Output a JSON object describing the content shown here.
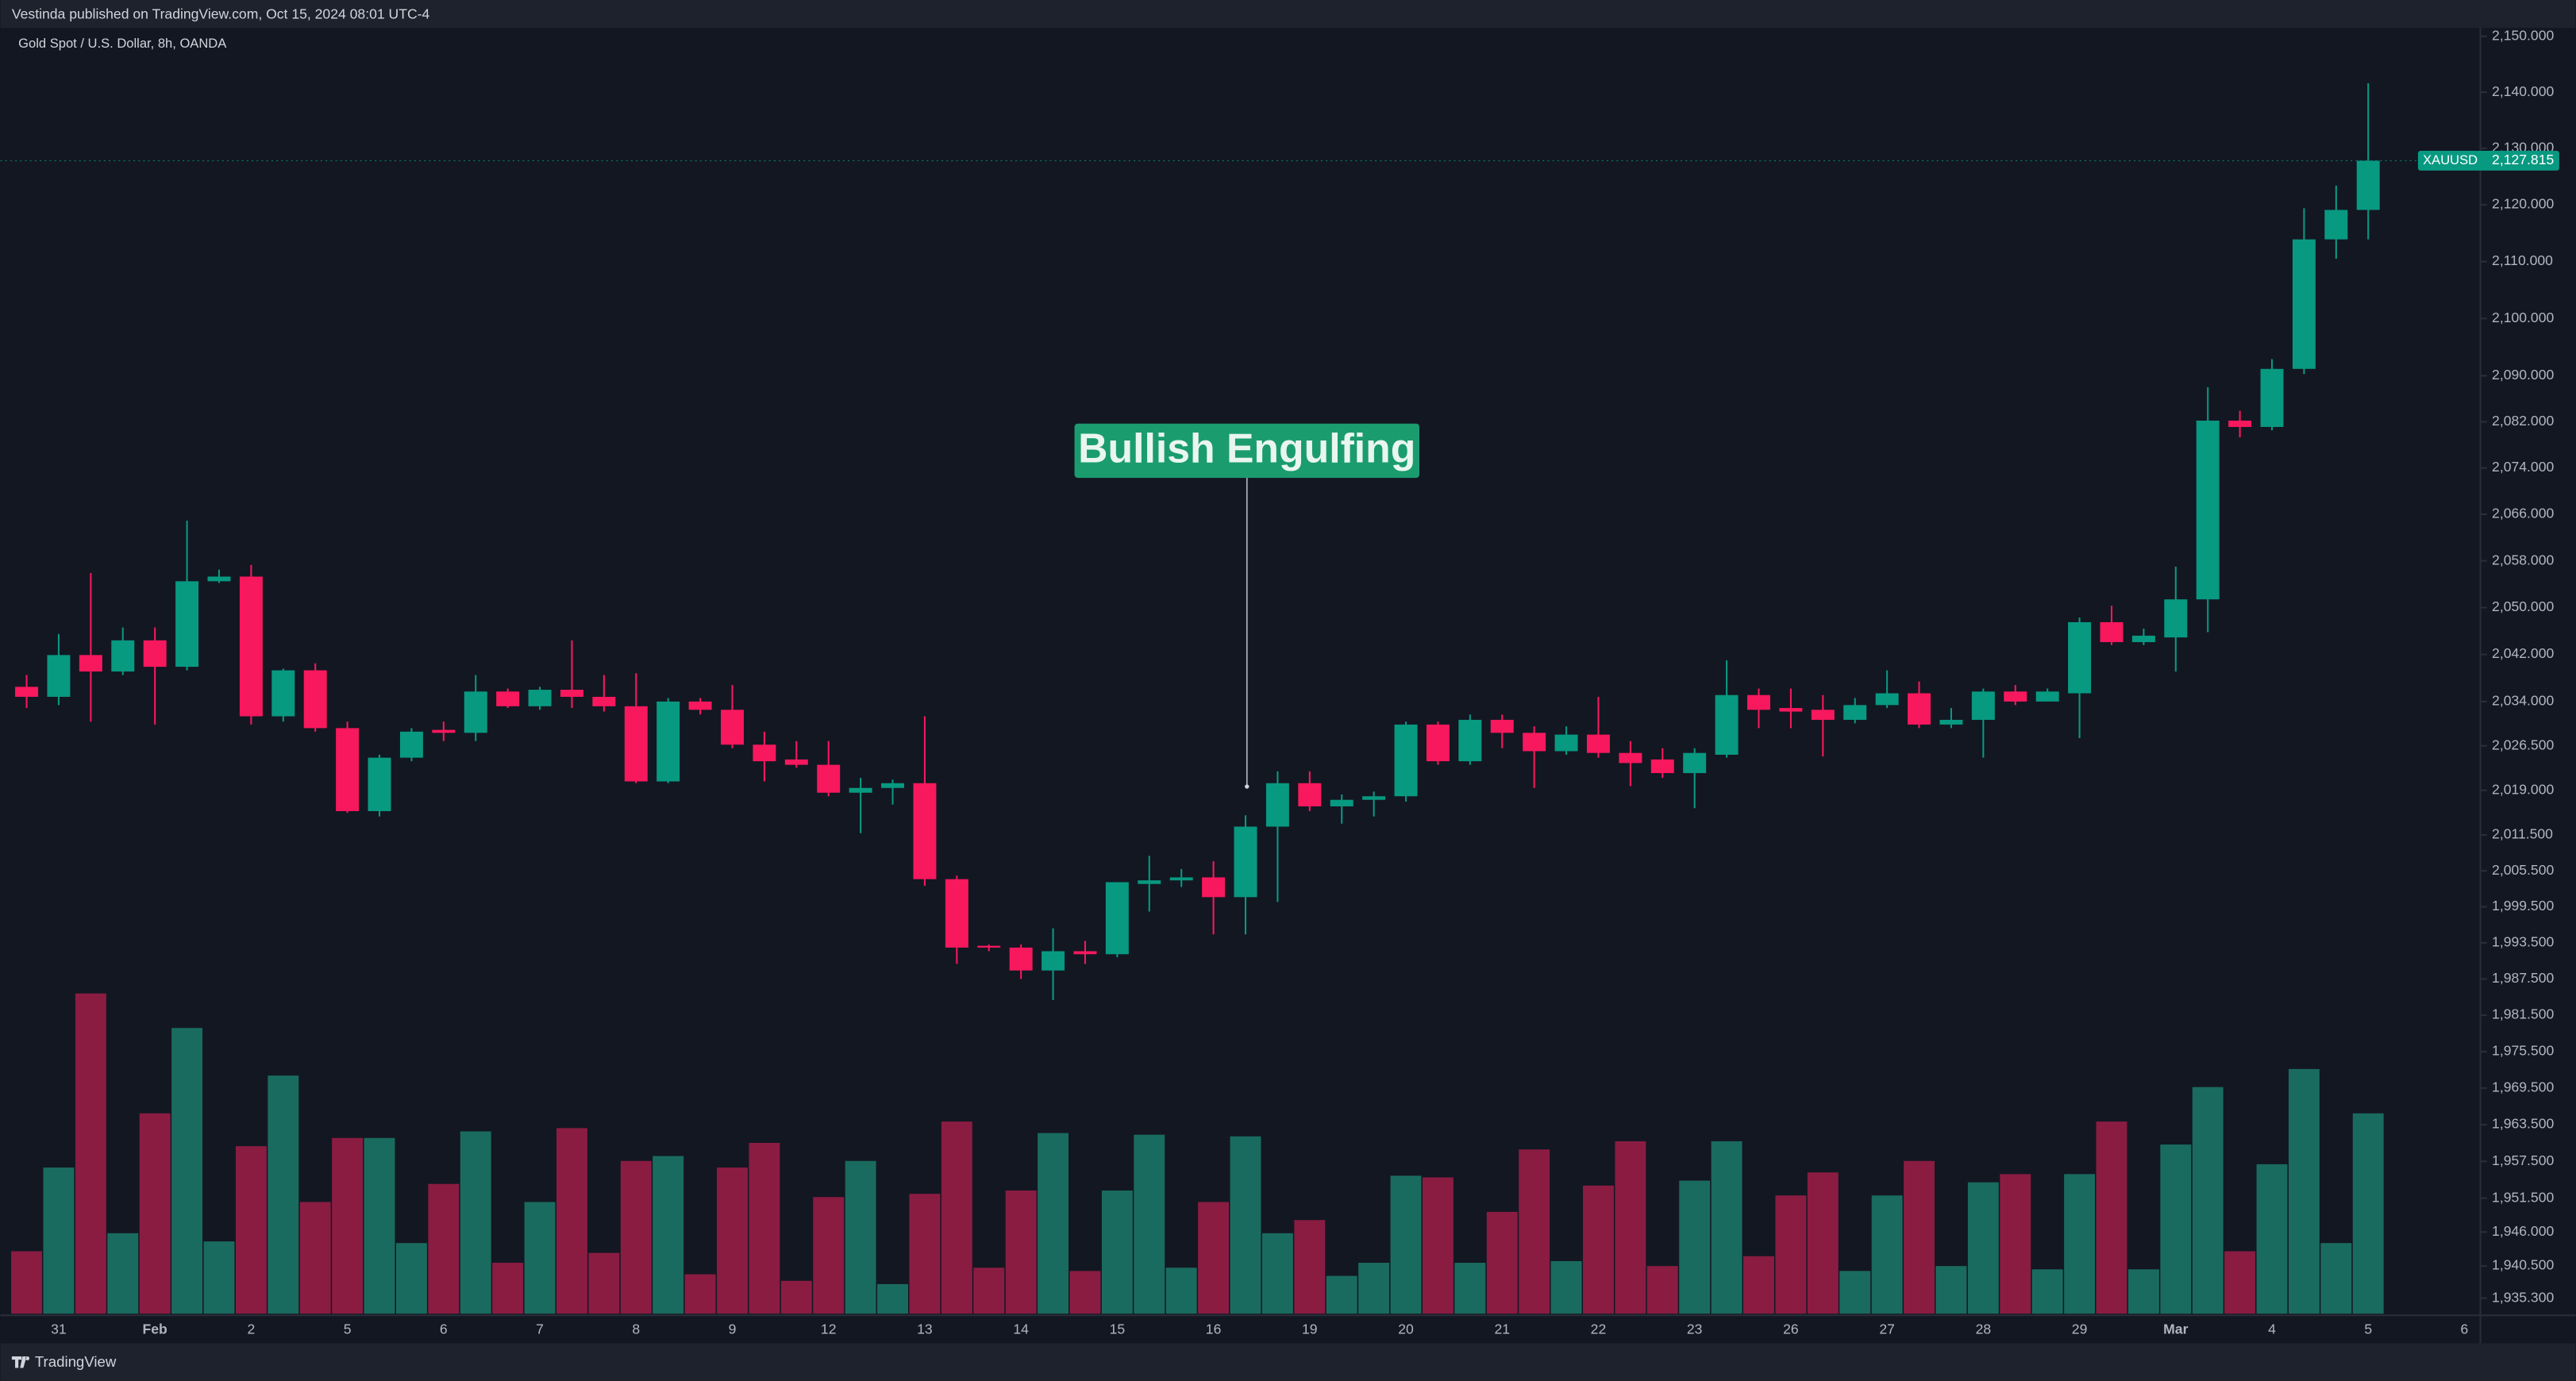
{
  "chart_data": {
    "type": "candlestick",
    "publisher_note": "Vestinda published on TradingView.com, Oct 15, 2024 08:01 UTC-4",
    "title": "Gold Spot / U.S. Dollar, 8h, OANDA",
    "annotation": "Bullish Engulfing",
    "log_scale": true,
    "grid": false,
    "up_color": "#089981",
    "down_color": "#f7185e",
    "volume_up_color": "#1a6b5f",
    "volume_down_color": "#8a1c42",
    "categories": [
      null,
      "31",
      null,
      null,
      "Feb",
      null,
      null,
      "2",
      null,
      null,
      "5",
      null,
      null,
      "6",
      null,
      null,
      "7",
      null,
      null,
      "8",
      null,
      null,
      "9",
      null,
      null,
      "12",
      null,
      null,
      "13",
      null,
      null,
      "14",
      null,
      null,
      "15",
      null,
      null,
      "16",
      null,
      null,
      "19",
      null,
      null,
      "20",
      null,
      null,
      "21",
      null,
      null,
      "22",
      null,
      null,
      "23",
      null,
      null,
      "26",
      null,
      null,
      "27",
      null,
      null,
      "28",
      null,
      null,
      "29",
      null,
      null,
      "Mar",
      null,
      null,
      "4",
      null,
      null,
      "5",
      null,
      null,
      "6"
    ],
    "candles": {
      "open": [
        2036.5,
        2034.8,
        2041.9,
        2039.1,
        2044.4,
        2039.9,
        2054.5,
        2055.3,
        2031.5,
        2039.3,
        2029.5,
        2015.5,
        2024.5,
        2029.2,
        2028.7,
        2035.7,
        2033.2,
        2036.0,
        2034.8,
        2033.2,
        2020.5,
        2034.0,
        2032.6,
        2026.7,
        2024.2,
        2023.3,
        2018.6,
        2019.4,
        2020.2,
        2004.1,
        1993.0,
        1992.7,
        1988.9,
        1992.1,
        1991.6,
        2003.3,
        2003.9,
        2004.4,
        2001.1,
        2012.9,
        2020.2,
        2016.3,
        2017.4,
        2018.0,
        2030.1,
        2023.9,
        2030.9,
        2028.7,
        2025.6,
        2028.4,
        2025.3,
        2024.2,
        2021.9,
        2025.0,
        2035.1,
        2032.9,
        2032.6,
        2030.9,
        2033.4,
        2035.4,
        2030.1,
        2030.9,
        2035.7,
        2034.0,
        2035.4,
        2047.5,
        2044.1,
        2044.9,
        2051.4,
        2082.2,
        2081.1,
        2091.2,
        2113.9,
        2119.1,
        null,
        null,
        null
      ],
      "high": [
        2038.5,
        2045.5,
        2055.9,
        2046.6,
        2046.6,
        2064.9,
        2056.5,
        2057.3,
        2039.6,
        2040.5,
        2030.6,
        2025.0,
        2029.5,
        2030.6,
        2038.5,
        2036.2,
        2036.5,
        2044.4,
        2038.5,
        2038.8,
        2034.6,
        2034.6,
        2036.8,
        2028.9,
        2027.3,
        2027.3,
        2021.1,
        2020.8,
        2031.5,
        2004.7,
        1993.2,
        1993.2,
        1995.9,
        1993.8,
        2003.6,
        2008.0,
        2005.8,
        2007.1,
        2014.8,
        2022.2,
        2022.2,
        2018.3,
        2018.8,
        2030.6,
        2030.6,
        2031.8,
        2031.8,
        2029.8,
        2029.8,
        2034.8,
        2027.3,
        2026.1,
        2026.1,
        2041.0,
        2036.2,
        2036.2,
        2035.1,
        2034.6,
        2039.3,
        2037.4,
        2032.9,
        2036.2,
        2036.8,
        2036.2,
        2048.3,
        2050.3,
        2046.4,
        2057.0,
        2088.0,
        2083.9,
        2092.9,
        2119.4,
        2123.4,
        2141.6,
        null,
        null,
        null
      ],
      "low": [
        2032.9,
        2033.4,
        2030.6,
        2038.5,
        2030.1,
        2039.3,
        2054.2,
        2030.1,
        2030.6,
        2028.9,
        2015.2,
        2014.6,
        2023.9,
        2027.3,
        2027.3,
        2032.9,
        2032.6,
        2032.9,
        2032.3,
        2020.2,
        2020.2,
        2031.8,
        2026.1,
        2020.5,
        2022.8,
        2018.0,
        2011.8,
        2016.6,
        2003.0,
        1990.0,
        1992.1,
        1987.5,
        1984.0,
        1990.0,
        1991.1,
        1998.7,
        2002.8,
        1994.9,
        1994.9,
        2000.3,
        2015.5,
        2013.4,
        2014.6,
        2017.1,
        2023.3,
        2023.3,
        2026.1,
        2019.4,
        2025.0,
        2024.5,
        2019.7,
        2021.1,
        2016.0,
        2024.5,
        2029.5,
        2029.5,
        2024.7,
        2030.3,
        2032.9,
        2029.5,
        2029.5,
        2024.5,
        2033.4,
        2034.0,
        2027.8,
        2043.6,
        2043.6,
        2039.1,
        2045.8,
        2079.3,
        2080.5,
        2090.3,
        2110.5,
        2113.9,
        null,
        null,
        null
      ],
      "close": [
        2034.8,
        2041.9,
        2039.1,
        2044.4,
        2039.9,
        2054.5,
        2055.3,
        2031.5,
        2039.3,
        2029.5,
        2015.5,
        2024.5,
        2028.9,
        2028.7,
        2035.7,
        2033.2,
        2036.0,
        2034.8,
        2033.2,
        2020.5,
        2034.0,
        2032.6,
        2026.7,
        2023.9,
        2023.3,
        2018.6,
        2019.4,
        2020.2,
        2004.1,
        1992.7,
        1992.7,
        1988.9,
        1992.1,
        1991.6,
        2003.6,
        2003.9,
        2004.4,
        2001.1,
        2012.9,
        2020.2,
        2016.3,
        2017.4,
        2018.0,
        2030.1,
        2023.9,
        2030.9,
        2028.7,
        2025.6,
        2028.4,
        2025.3,
        2023.6,
        2021.9,
        2025.3,
        2035.1,
        2032.6,
        2032.3,
        2030.9,
        2033.4,
        2035.4,
        2030.1,
        2030.9,
        2035.7,
        2034.0,
        2035.7,
        2047.5,
        2044.1,
        2045.2,
        2051.4,
        2082.2,
        2081.1,
        2091.2,
        2113.9,
        2119.1,
        2127.815,
        null,
        null,
        null
      ],
      "volume": [
        38,
        89,
        195,
        49,
        122,
        174,
        44,
        102,
        145,
        68,
        107,
        107,
        43,
        79,
        111,
        31,
        68,
        113,
        37,
        93,
        96,
        24,
        89,
        104,
        20,
        71,
        93,
        18,
        73,
        117,
        28,
        75,
        110,
        26,
        75,
        109,
        28,
        68,
        108,
        49,
        57,
        23,
        31,
        84,
        83,
        31,
        62,
        100,
        32,
        78,
        105,
        29,
        81,
        105,
        35,
        72,
        86,
        26,
        72,
        93,
        29,
        80,
        85,
        27,
        85,
        117,
        27,
        103,
        138,
        38,
        91,
        149,
        43,
        122,
        null,
        null,
        null
      ]
    },
    "ylim": [
      1932.8,
      2151.5
    ],
    "yticks": [
      {
        "value": 2150,
        "label": "2,150.000"
      },
      {
        "value": 2140,
        "label": "2,140.000"
      },
      {
        "value": 2130,
        "label": "2,130.000"
      },
      {
        "value": 2120,
        "label": "2,120.000"
      },
      {
        "value": 2110,
        "label": "2,110.000"
      },
      {
        "value": 2100,
        "label": "2,100.000"
      },
      {
        "value": 2090,
        "label": "2,090.000"
      },
      {
        "value": 2082,
        "label": "2,082.000"
      },
      {
        "value": 2074,
        "label": "2,074.000"
      },
      {
        "value": 2066,
        "label": "2,066.000"
      },
      {
        "value": 2058,
        "label": "2,058.000"
      },
      {
        "value": 2050,
        "label": "2,050.000"
      },
      {
        "value": 2042,
        "label": "2,042.000"
      },
      {
        "value": 2034,
        "label": "2,034.000"
      },
      {
        "value": 2026.5,
        "label": "2,026.500"
      },
      {
        "value": 2019,
        "label": "2,019.000"
      },
      {
        "value": 2011.5,
        "label": "2,011.500"
      },
      {
        "value": 2005.5,
        "label": "2,005.500"
      },
      {
        "value": 1999.5,
        "label": "1,999.500"
      },
      {
        "value": 1993.5,
        "label": "1,993.500"
      },
      {
        "value": 1987.5,
        "label": "1,987.500"
      },
      {
        "value": 1981.5,
        "label": "1,981.500"
      },
      {
        "value": 1975.5,
        "label": "1,975.500"
      },
      {
        "value": 1969.5,
        "label": "1,969.500"
      },
      {
        "value": 1963.5,
        "label": "1,963.500"
      },
      {
        "value": 1957.5,
        "label": "1,957.500"
      },
      {
        "value": 1951.5,
        "label": "1,951.500"
      },
      {
        "value": 1946,
        "label": "1,946.000"
      },
      {
        "value": 1940.5,
        "label": "1,940.500"
      },
      {
        "value": 1935.3,
        "label": "1,935.300"
      }
    ],
    "last_price": {
      "symbol": "XAUUSD",
      "value": 2127.815,
      "label": "2,127.815"
    }
  },
  "footer": {
    "brand": "TradingView"
  }
}
